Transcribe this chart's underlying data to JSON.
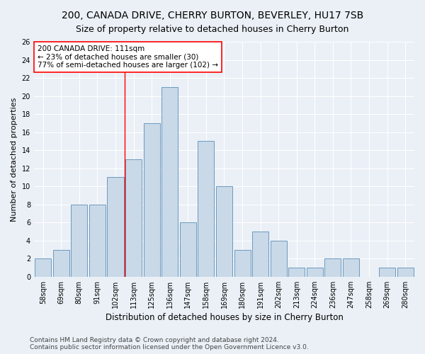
{
  "title": "200, CANADA DRIVE, CHERRY BURTON, BEVERLEY, HU17 7SB",
  "subtitle": "Size of property relative to detached houses in Cherry Burton",
  "xlabel": "Distribution of detached houses by size in Cherry Burton",
  "ylabel": "Number of detached properties",
  "categories": [
    "58sqm",
    "69sqm",
    "80sqm",
    "91sqm",
    "102sqm",
    "113sqm",
    "125sqm",
    "136sqm",
    "147sqm",
    "158sqm",
    "169sqm",
    "180sqm",
    "191sqm",
    "202sqm",
    "213sqm",
    "224sqm",
    "236sqm",
    "247sqm",
    "258sqm",
    "269sqm",
    "280sqm"
  ],
  "values": [
    2,
    3,
    8,
    8,
    11,
    13,
    17,
    21,
    6,
    15,
    10,
    3,
    5,
    4,
    1,
    1,
    2,
    2,
    0,
    1,
    1
  ],
  "bar_color": "#c9d9e8",
  "bar_edge_color": "#5b8db8",
  "vline_color": "red",
  "vline_x_index": 4.5,
  "annotation_text": "200 CANADA DRIVE: 111sqm\n← 23% of detached houses are smaller (30)\n77% of semi-detached houses are larger (102) →",
  "annotation_box_color": "white",
  "annotation_box_edge_color": "red",
  "ylim": [
    0,
    26
  ],
  "yticks": [
    0,
    2,
    4,
    6,
    8,
    10,
    12,
    14,
    16,
    18,
    20,
    22,
    24,
    26
  ],
  "footer_line1": "Contains HM Land Registry data © Crown copyright and database right 2024.",
  "footer_line2": "Contains public sector information licensed under the Open Government Licence v3.0.",
  "background_color": "#eaf0f6",
  "grid_color": "#ffffff",
  "title_fontsize": 10,
  "subtitle_fontsize": 9,
  "ylabel_fontsize": 8,
  "xlabel_fontsize": 8.5,
  "tick_fontsize": 7,
  "annotation_fontsize": 7.5,
  "footer_fontsize": 6.5
}
